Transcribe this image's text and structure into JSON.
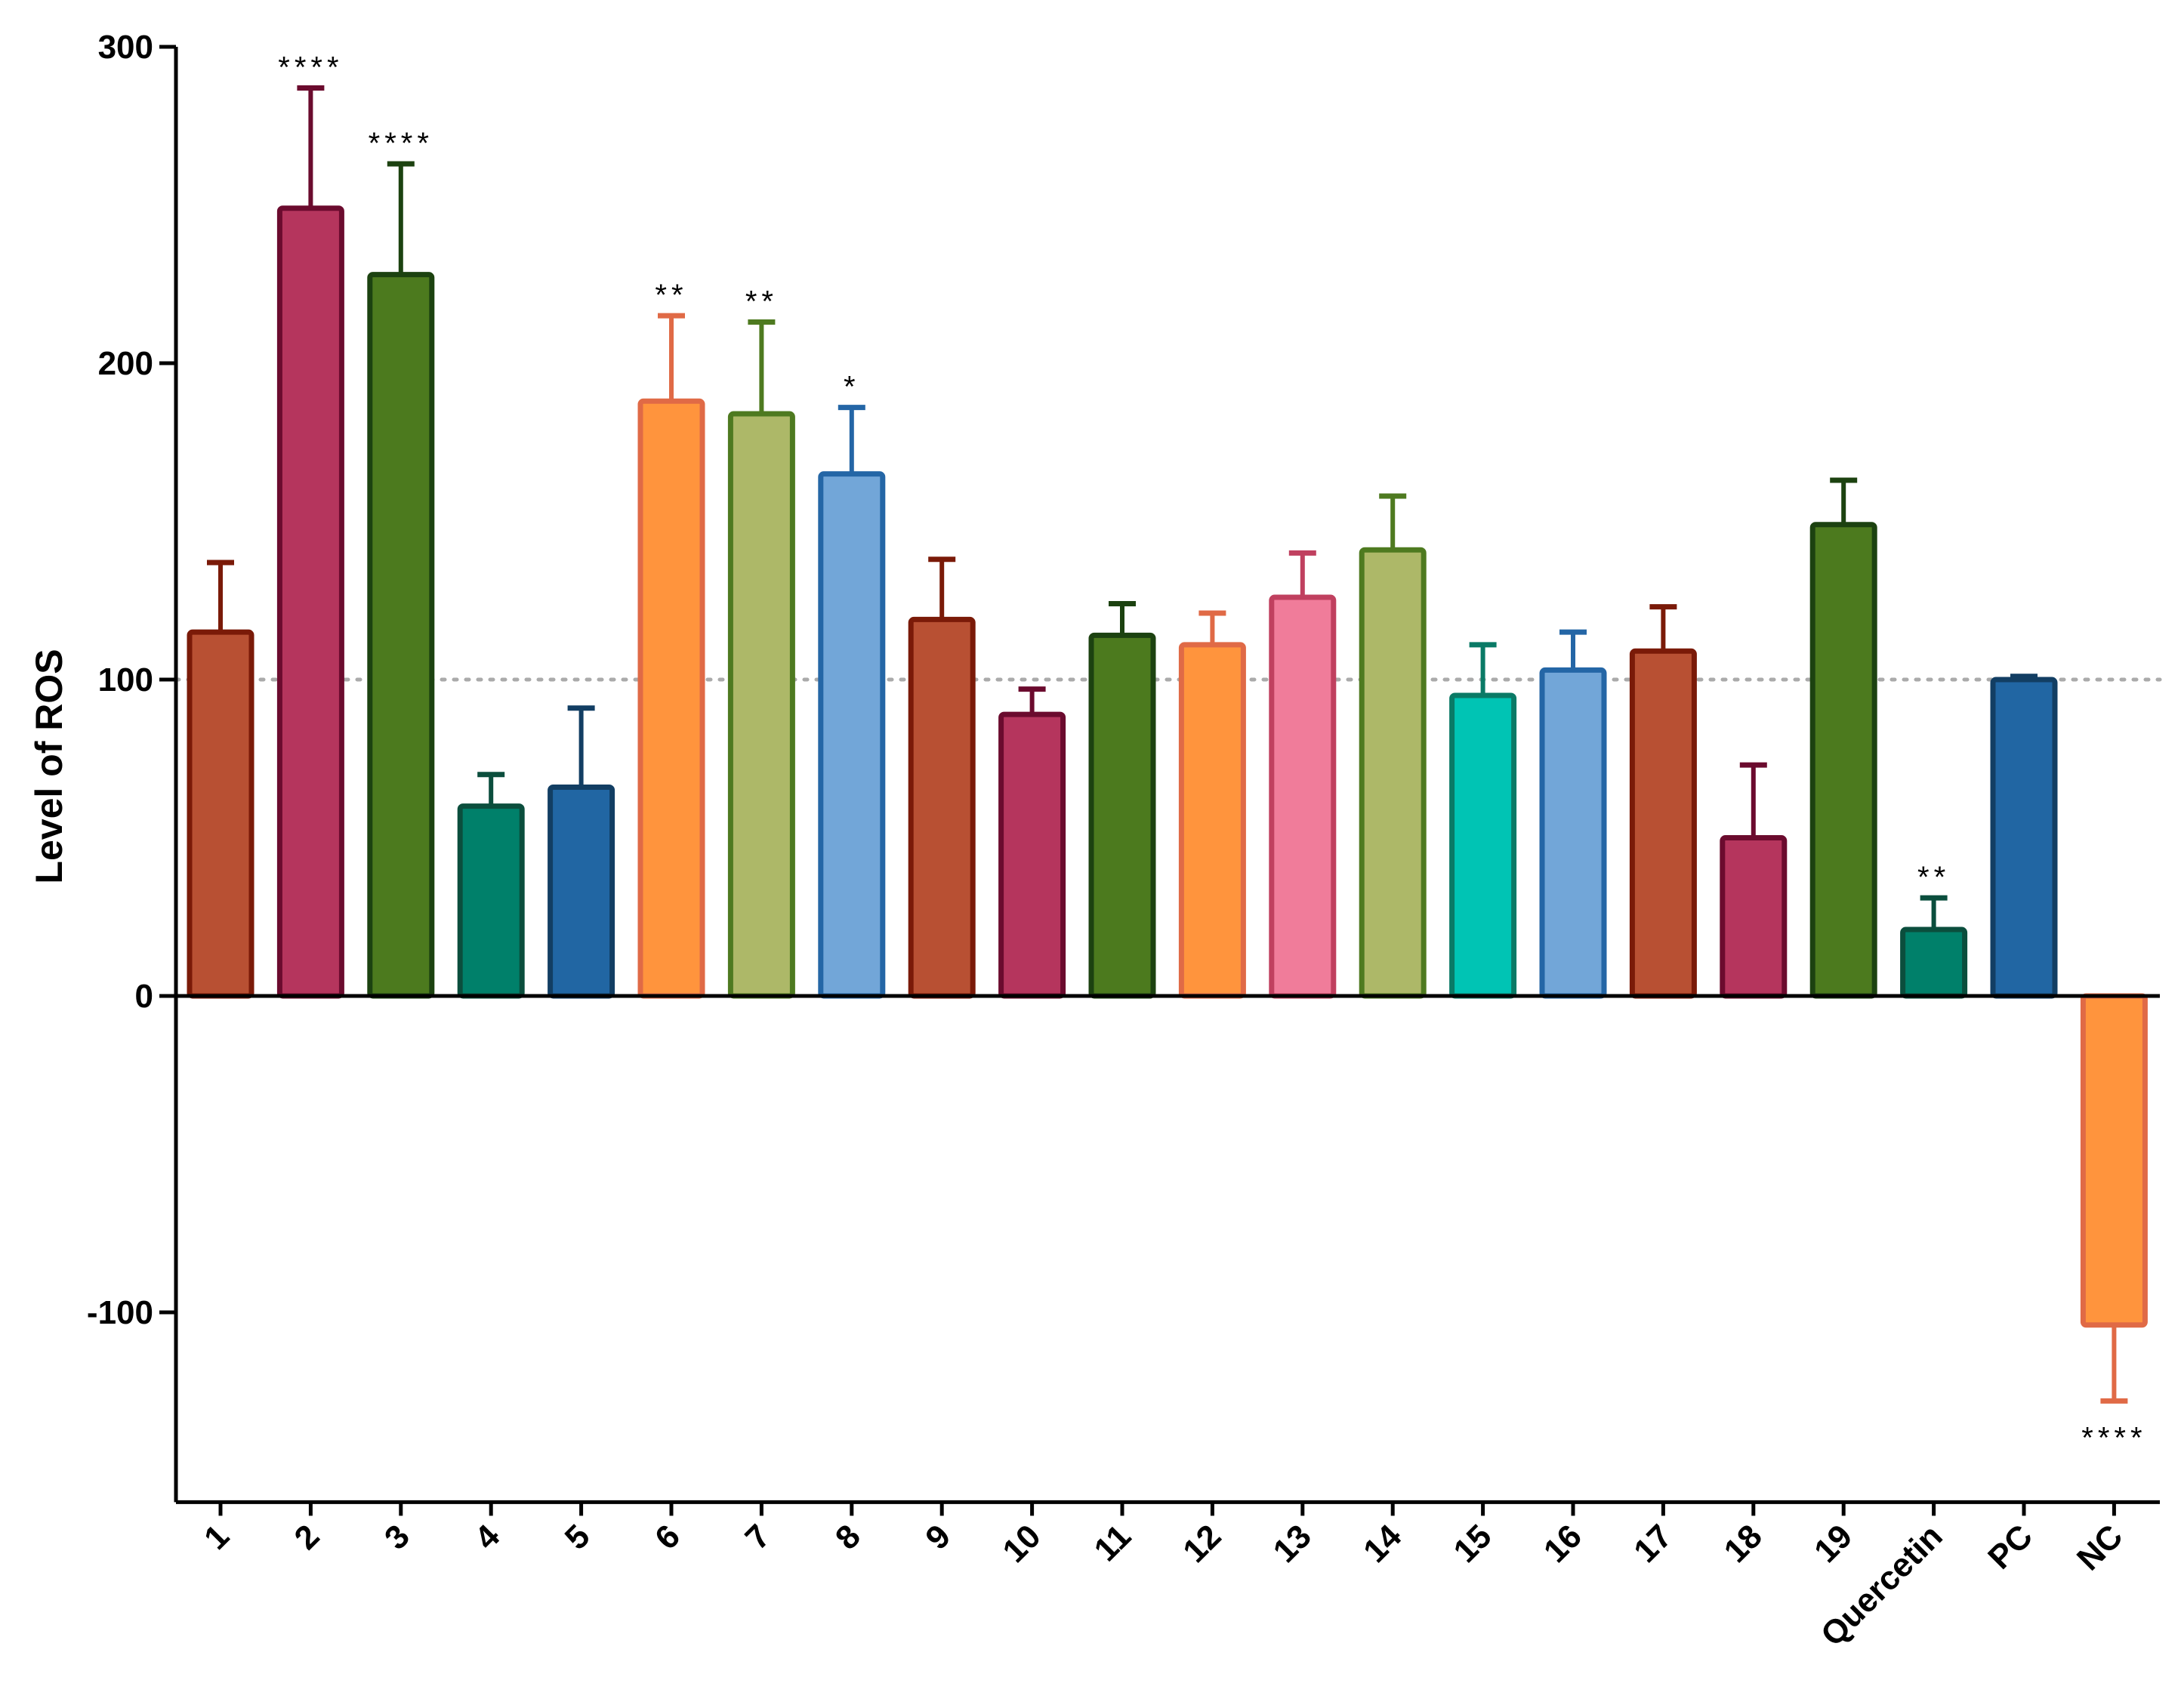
{
  "chart_data": {
    "type": "bar",
    "title": "",
    "xlabel": "",
    "ylabel": "Level of ROS",
    "ylim": [
      -160,
      300
    ],
    "yticks": [
      -100,
      0,
      100,
      200,
      300
    ],
    "reference_line": 100,
    "grid": false,
    "categories": [
      "1",
      "2",
      "3",
      "4",
      "5",
      "6",
      "7",
      "8",
      "9",
      "10",
      "11",
      "12",
      "13",
      "14",
      "15",
      "16",
      "17",
      "18",
      "19",
      "Quercetin",
      "PC",
      "NC"
    ],
    "values": [
      115,
      249,
      228,
      60,
      66,
      188,
      184,
      165,
      119,
      89,
      114,
      111,
      126,
      141,
      95,
      103,
      109,
      50,
      149,
      21,
      100,
      -104
    ],
    "errors": [
      22,
      38,
      35,
      10,
      25,
      27,
      29,
      21,
      19,
      8,
      10,
      10,
      14,
      17,
      16,
      12,
      14,
      23,
      14,
      10,
      1,
      24
    ],
    "significance": [
      "",
      "****",
      "****",
      "",
      "",
      "**",
      "**",
      "*",
      "",
      "",
      "",
      "",
      "",
      "",
      "",
      "",
      "",
      "",
      "",
      "**",
      "",
      "****"
    ],
    "colors": {
      "fill": [
        "#b85033",
        "#b5355d",
        "#4c7a1e",
        "#00806a",
        "#2166a3",
        "#ff943d",
        "#adb868",
        "#72a6d8",
        "#b85033",
        "#b5355d",
        "#4c7a1e",
        "#ff943d",
        "#f07c9a",
        "#adb868",
        "#00c4b4",
        "#72a6d8",
        "#b85033",
        "#b5355d",
        "#4c7a1e",
        "#00806a",
        "#2166a3",
        "#ff943d"
      ],
      "stroke": [
        "#7a1a08",
        "#6b0b2e",
        "#1c4210",
        "#0b4e3d",
        "#123e63",
        "#e06a46",
        "#4e7a20",
        "#2466a6",
        "#7a1a08",
        "#6b0b2e",
        "#1c4210",
        "#e06a46",
        "#c0405f",
        "#4e7a20",
        "#0a7a66",
        "#2466a6",
        "#7a1a08",
        "#6b0b2e",
        "#1c4210",
        "#0b4e3d",
        "#123e63",
        "#e06a46"
      ]
    }
  }
}
